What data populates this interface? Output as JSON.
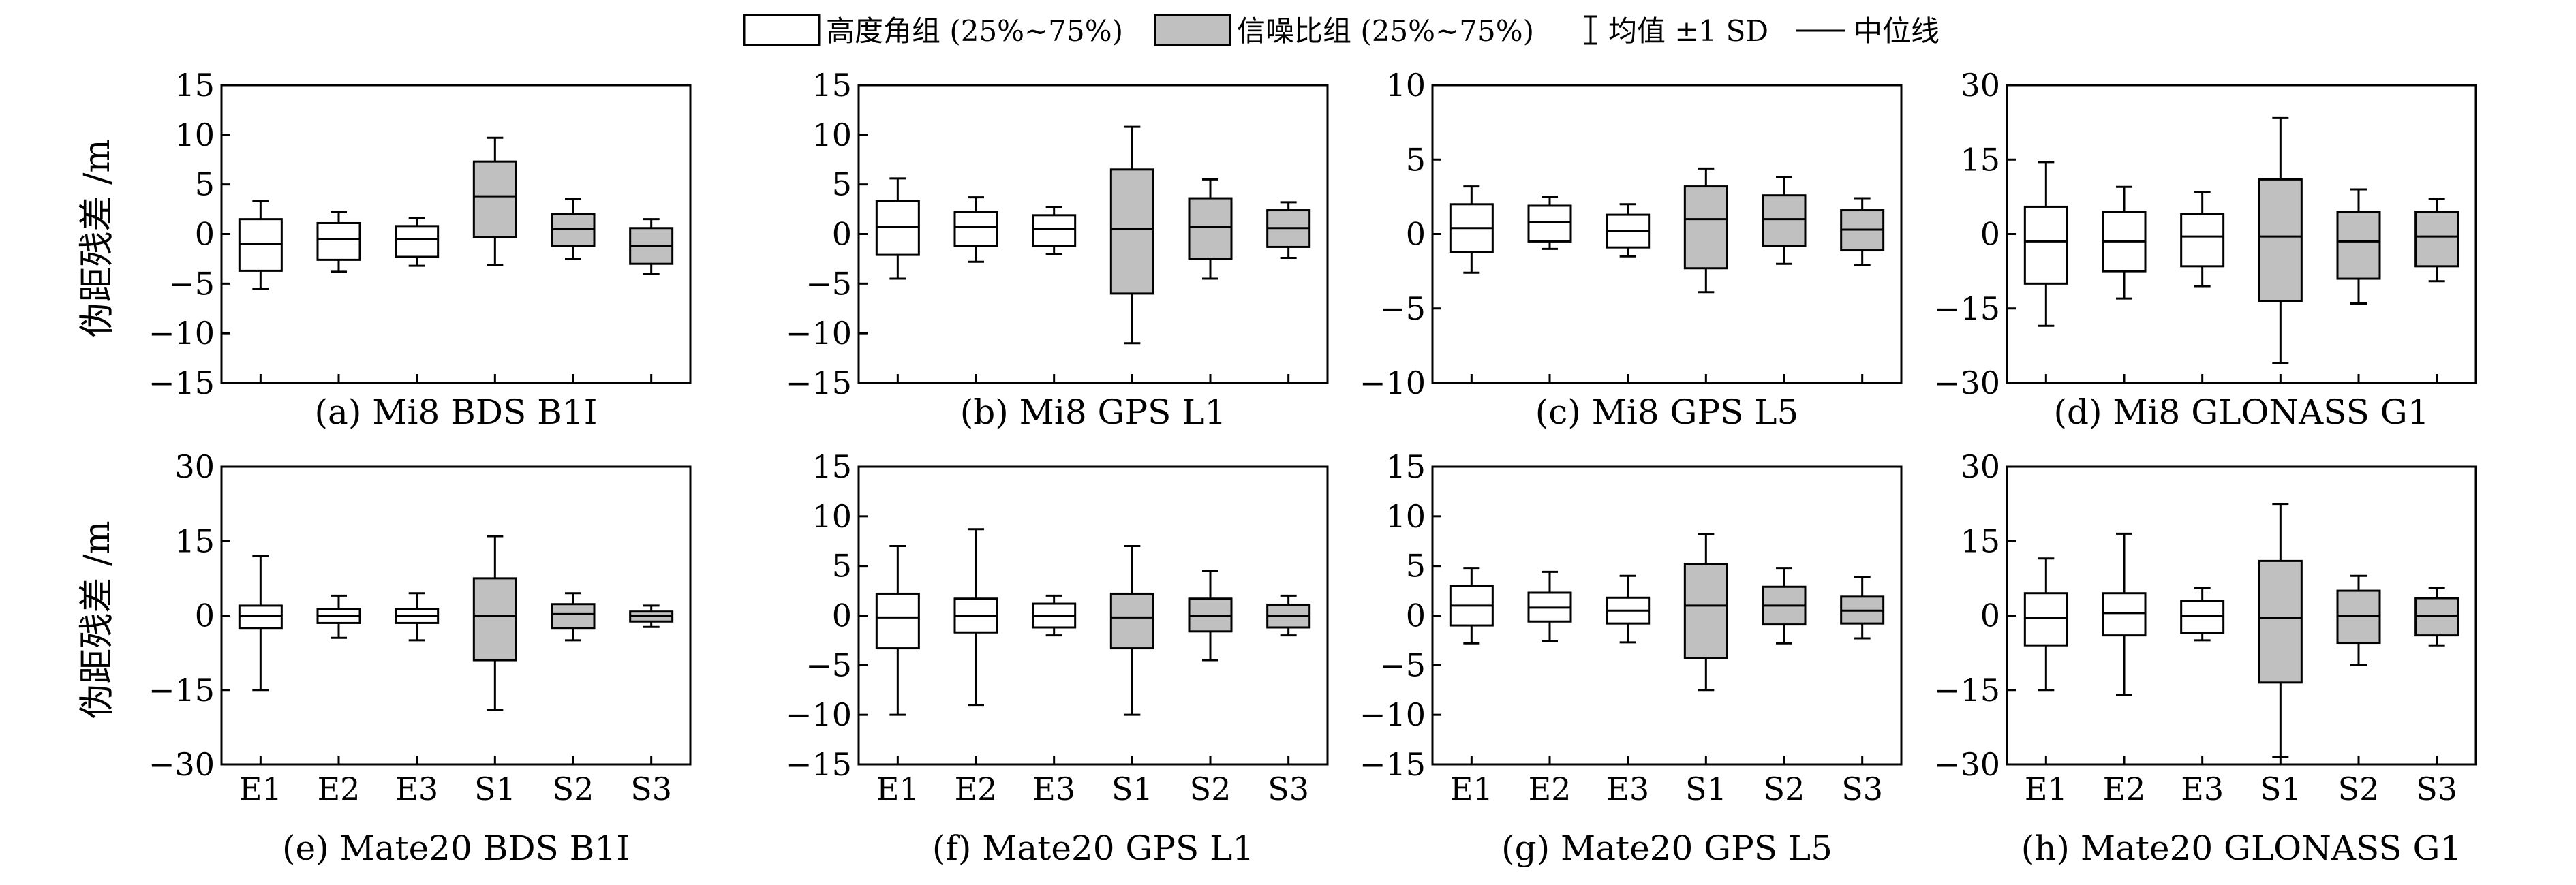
{
  "legend": {
    "elevation_label": "高度角组 (25%~75%)",
    "snr_label": "信噪比组 (25%~75%)",
    "mean_sd_label": "均值 ±1 SD",
    "median_label": "中位线"
  },
  "y_axis_label": "伪距残差 /m",
  "colors": {
    "elevation_fill": "#ffffff",
    "snr_fill": "#c0c0c0",
    "line": "#000000"
  },
  "chart_data": [
    {
      "type": "box",
      "title": "(a) Mi8 BDS B1I",
      "ylim": [
        -15,
        15
      ],
      "yticks": [
        -15,
        -10,
        -5,
        0,
        5,
        10,
        15
      ],
      "categories": [
        "E1",
        "E2",
        "E3",
        "S1",
        "S2",
        "S3"
      ],
      "show_xticklabels": false,
      "groups": [
        "elevation",
        "elevation",
        "elevation",
        "snr",
        "snr",
        "snr"
      ],
      "q1": [
        -3.7,
        -2.6,
        -2.3,
        -0.3,
        -1.2,
        -3.0
      ],
      "median": [
        -1.0,
        -0.5,
        -0.5,
        3.8,
        0.5,
        -1.2
      ],
      "q3": [
        1.5,
        1.1,
        0.8,
        7.3,
        2.0,
        0.6
      ],
      "lower": [
        -5.5,
        -3.8,
        -3.2,
        -3.1,
        -2.5,
        -4.0
      ],
      "upper": [
        3.3,
        2.2,
        1.6,
        9.7,
        3.5,
        1.5
      ]
    },
    {
      "type": "box",
      "title": "(b) Mi8 GPS L1",
      "ylim": [
        -15,
        15
      ],
      "yticks": [
        -15,
        -10,
        -5,
        0,
        5,
        10,
        15
      ],
      "categories": [
        "E1",
        "E2",
        "E3",
        "S1",
        "S2",
        "S3"
      ],
      "show_xticklabels": false,
      "groups": [
        "elevation",
        "elevation",
        "elevation",
        "snr",
        "snr",
        "snr"
      ],
      "q1": [
        -2.1,
        -1.2,
        -1.2,
        -6.0,
        -2.5,
        -1.3
      ],
      "median": [
        0.7,
        0.7,
        0.5,
        0.5,
        0.7,
        0.6
      ],
      "q3": [
        3.3,
        2.2,
        1.9,
        6.5,
        3.6,
        2.4
      ],
      "lower": [
        -4.5,
        -2.8,
        -2.0,
        -11.0,
        -4.5,
        -2.4
      ],
      "upper": [
        5.6,
        3.7,
        2.7,
        10.8,
        5.5,
        3.2
      ]
    },
    {
      "type": "box",
      "title": "(c) Mi8 GPS L5",
      "ylim": [
        -10,
        10
      ],
      "yticks": [
        -10,
        -5,
        0,
        5,
        10
      ],
      "categories": [
        "E1",
        "E2",
        "E3",
        "S1",
        "S2",
        "S3"
      ],
      "show_xticklabels": false,
      "groups": [
        "elevation",
        "elevation",
        "elevation",
        "snr",
        "snr",
        "snr"
      ],
      "q1": [
        -1.2,
        -0.5,
        -0.9,
        -2.3,
        -0.8,
        -1.1
      ],
      "median": [
        0.4,
        0.8,
        0.2,
        1.0,
        1.0,
        0.3
      ],
      "q3": [
        2.0,
        1.9,
        1.3,
        3.2,
        2.6,
        1.6
      ],
      "lower": [
        -2.6,
        -1.0,
        -1.5,
        -3.9,
        -2.0,
        -2.1
      ],
      "upper": [
        3.2,
        2.5,
        2.0,
        4.4,
        3.8,
        2.4
      ]
    },
    {
      "type": "box",
      "title": "(d) Mi8 GLONASS G1",
      "ylim": [
        -30,
        30
      ],
      "yticks": [
        -30,
        -15,
        0,
        15,
        30
      ],
      "categories": [
        "E1",
        "E2",
        "E3",
        "S1",
        "S2",
        "S3"
      ],
      "show_xticklabels": false,
      "groups": [
        "elevation",
        "elevation",
        "elevation",
        "snr",
        "snr",
        "snr"
      ],
      "q1": [
        -10.0,
        -7.5,
        -6.5,
        -13.5,
        -9.0,
        -6.5
      ],
      "median": [
        -1.5,
        -1.5,
        -0.5,
        -0.5,
        -1.5,
        -0.5
      ],
      "q3": [
        5.5,
        4.5,
        4.0,
        11.0,
        4.5,
        4.5
      ],
      "lower": [
        -18.5,
        -13.0,
        -10.5,
        -26.0,
        -14.0,
        -9.5
      ],
      "upper": [
        14.5,
        9.5,
        8.5,
        23.5,
        9.0,
        7.0
      ]
    },
    {
      "type": "box",
      "title": "(e) Mate20 BDS B1I",
      "ylim": [
        -30,
        30
      ],
      "yticks": [
        -30,
        -15,
        0,
        15,
        30
      ],
      "categories": [
        "E1",
        "E2",
        "E3",
        "S1",
        "S2",
        "S3"
      ],
      "show_xticklabels": true,
      "groups": [
        "elevation",
        "elevation",
        "elevation",
        "snr",
        "snr",
        "snr"
      ],
      "q1": [
        -2.5,
        -1.5,
        -1.5,
        -9.0,
        -2.5,
        -1.2
      ],
      "median": [
        0.0,
        0.0,
        0.0,
        0.0,
        0.3,
        0.0
      ],
      "q3": [
        2.0,
        1.3,
        1.3,
        7.5,
        2.3,
        0.8
      ],
      "lower": [
        -15.0,
        -4.5,
        -5.0,
        -19.0,
        -5.0,
        -2.3
      ],
      "upper": [
        12.0,
        4.0,
        4.5,
        16.0,
        4.5,
        2.0
      ]
    },
    {
      "type": "box",
      "title": "(f) Mate20 GPS L1",
      "ylim": [
        -15,
        15
      ],
      "yticks": [
        -15,
        -10,
        -5,
        0,
        5,
        10,
        15
      ],
      "categories": [
        "E1",
        "E2",
        "E3",
        "S1",
        "S2",
        "S3"
      ],
      "show_xticklabels": true,
      "groups": [
        "elevation",
        "elevation",
        "elevation",
        "snr",
        "snr",
        "snr"
      ],
      "q1": [
        -3.3,
        -1.7,
        -1.2,
        -3.3,
        -1.6,
        -1.2
      ],
      "median": [
        -0.2,
        0.0,
        0.0,
        -0.2,
        0.0,
        0.0
      ],
      "q3": [
        2.2,
        1.7,
        1.2,
        2.2,
        1.7,
        1.1
      ],
      "lower": [
        -10.0,
        -9.0,
        -2.0,
        -10.0,
        -4.5,
        -2.0
      ],
      "upper": [
        7.0,
        8.7,
        2.0,
        7.0,
        4.5,
        2.0
      ]
    },
    {
      "type": "box",
      "title": "(g) Mate20 GPS L5",
      "ylim": [
        -15,
        15
      ],
      "yticks": [
        -15,
        -10,
        -5,
        0,
        5,
        10,
        15
      ],
      "categories": [
        "E1",
        "E2",
        "E3",
        "S1",
        "S2",
        "S3"
      ],
      "show_xticklabels": true,
      "groups": [
        "elevation",
        "elevation",
        "elevation",
        "snr",
        "snr",
        "snr"
      ],
      "q1": [
        -1.0,
        -0.6,
        -0.8,
        -4.3,
        -0.9,
        -0.8
      ],
      "median": [
        1.0,
        0.8,
        0.5,
        1.0,
        1.0,
        0.5
      ],
      "q3": [
        3.0,
        2.3,
        1.8,
        5.2,
        2.9,
        1.9
      ],
      "lower": [
        -2.8,
        -2.6,
        -2.7,
        -7.5,
        -2.8,
        -2.3
      ],
      "upper": [
        4.8,
        4.4,
        4.0,
        8.2,
        4.8,
        3.9
      ]
    },
    {
      "type": "box",
      "title": "(h) Mate20 GLONASS G1",
      "ylim": [
        -30,
        30
      ],
      "yticks": [
        -30,
        -15,
        0,
        15,
        30
      ],
      "categories": [
        "E1",
        "E2",
        "E3",
        "S1",
        "S2",
        "S3"
      ],
      "show_xticklabels": true,
      "groups": [
        "elevation",
        "elevation",
        "elevation",
        "snr",
        "snr",
        "snr"
      ],
      "q1": [
        -6.0,
        -4.0,
        -3.5,
        -13.5,
        -5.5,
        -4.0
      ],
      "median": [
        -0.5,
        0.5,
        0.0,
        -0.5,
        0.0,
        0.0
      ],
      "q3": [
        4.5,
        4.5,
        3.0,
        11.0,
        5.0,
        3.5
      ],
      "lower": [
        -15.0,
        -16.0,
        -5.0,
        -28.5,
        -10.0,
        -6.0
      ],
      "upper": [
        11.5,
        16.5,
        5.5,
        22.5,
        8.0,
        5.5
      ]
    }
  ]
}
